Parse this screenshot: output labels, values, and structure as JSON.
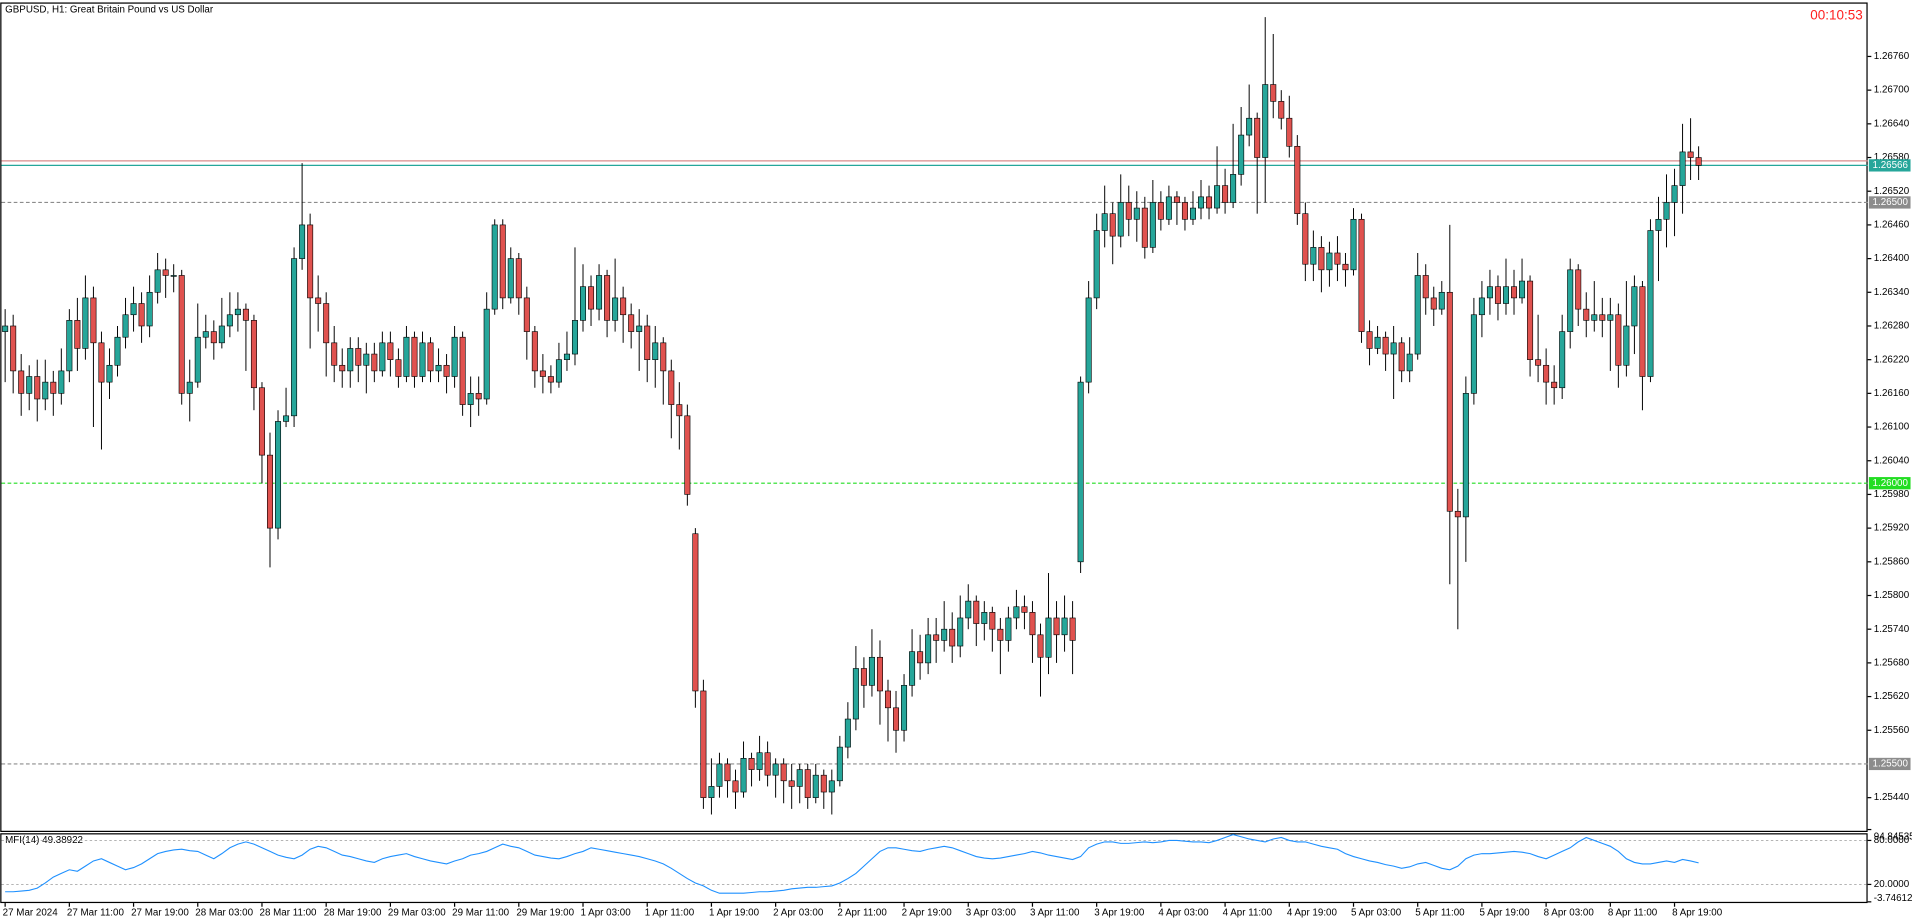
{
  "chart_data": {
    "type": "candlestick",
    "title": "GBPUSD, H1:  Great Britain Pound vs US Dollar",
    "timer": "00:10:53",
    "up_color": "#26a69a",
    "down_color": "#e0524f",
    "categories": [
      "27 Mar 2024",
      null,
      null,
      null,
      null,
      null,
      null,
      null,
      "27 Mar 11:00",
      null,
      null,
      null,
      null,
      null,
      null,
      null,
      "27 Mar 19:00",
      null,
      null,
      null,
      null,
      null,
      null,
      null,
      "28 Mar 03:00",
      null,
      null,
      null,
      null,
      null,
      null,
      null,
      "28 Mar 11:00",
      null,
      null,
      null,
      null,
      null,
      null,
      null,
      "28 Mar 19:00",
      null,
      null,
      null,
      null,
      null,
      null,
      null,
      "29 Mar 03:00",
      null,
      null,
      null,
      null,
      null,
      null,
      null,
      "29 Mar 11:00",
      null,
      null,
      null,
      null,
      null,
      null,
      null,
      "29 Mar 19:00",
      null,
      null,
      null,
      null,
      null,
      null,
      null,
      "1 Apr 03:00",
      null,
      null,
      null,
      null,
      null,
      null,
      null,
      "1 Apr 11:00",
      null,
      null,
      null,
      null,
      null,
      null,
      null,
      "1 Apr 19:00",
      null,
      null,
      null,
      null,
      null,
      null,
      null,
      "2 Apr 03:00",
      null,
      null,
      null,
      null,
      null,
      null,
      null,
      "2 Apr 11:00",
      null,
      null,
      null,
      null,
      null,
      null,
      null,
      "2 Apr 19:00",
      null,
      null,
      null,
      null,
      null,
      null,
      null,
      "3 Apr 03:00",
      null,
      null,
      null,
      null,
      null,
      null,
      null,
      "3 Apr 11:00",
      null,
      null,
      null,
      null,
      null,
      null,
      null,
      "3 Apr 19:00",
      null,
      null,
      null,
      null,
      null,
      null,
      null,
      "4 Apr 03:00",
      null,
      null,
      null,
      null,
      null,
      null,
      null,
      "4 Apr 11:00",
      null,
      null,
      null,
      null,
      null,
      null,
      null,
      "4 Apr 19:00",
      null,
      null,
      null,
      null,
      null,
      null,
      null,
      "5 Apr 03:00",
      null,
      null,
      null,
      null,
      null,
      null,
      null,
      "5 Apr 11:00",
      null,
      null,
      null,
      null,
      null,
      null,
      null,
      "5 Apr 19:00",
      null,
      null,
      null,
      null,
      null,
      null,
      null,
      "8 Apr 03:00",
      null,
      null,
      null,
      null,
      null,
      null,
      null,
      "8 Apr 11:00",
      null,
      null,
      null,
      null,
      null,
      null,
      null,
      "8 Apr 19:00",
      null,
      null,
      null
    ],
    "open": [
      1.2627,
      1.2628,
      1.262,
      1.2616,
      1.2619,
      1.2615,
      1.2618,
      1.2616,
      1.262,
      1.2629,
      1.2624,
      1.2633,
      1.2625,
      1.2618,
      1.2621,
      1.2626,
      1.263,
      1.2632,
      1.2628,
      1.2634,
      1.2638,
      1.2637,
      1.2637,
      1.2616,
      1.2618,
      1.2626,
      1.2627,
      1.2625,
      1.2628,
      1.263,
      1.2631,
      1.2629,
      1.2617,
      1.2605,
      1.2592,
      1.2611,
      1.2612,
      1.264,
      1.2646,
      1.2633,
      1.2632,
      1.2625,
      1.2621,
      1.262,
      1.2624,
      1.2621,
      1.2623,
      1.262,
      1.2625,
      1.2622,
      1.2619,
      1.2626,
      1.2619,
      1.2625,
      1.262,
      1.2621,
      1.2619,
      1.2626,
      1.2614,
      1.2616,
      1.2615,
      1.2631,
      1.2646,
      1.2633,
      1.264,
      1.2633,
      1.2627,
      1.262,
      1.2619,
      1.2618,
      1.2622,
      1.2623,
      1.2629,
      1.2635,
      1.2631,
      1.2637,
      1.2629,
      1.2633,
      1.263,
      1.2627,
      1.2628,
      1.2622,
      1.2625,
      1.262,
      1.2614,
      1.2612,
      1.2591,
      1.2563,
      1.2544,
      1.2546,
      1.255,
      1.2547,
      1.2545,
      1.2551,
      1.2549,
      1.2552,
      1.2548,
      1.255,
      1.2547,
      1.2546,
      1.2549,
      1.2544,
      1.2548,
      1.2545,
      1.2547,
      1.2553,
      1.2558,
      1.2567,
      1.2564,
      1.2569,
      1.2563,
      1.256,
      1.2556,
      1.2564,
      1.257,
      1.2568,
      1.2573,
      1.2572,
      1.2574,
      1.2571,
      1.2576,
      1.2579,
      1.2575,
      1.2577,
      1.2574,
      1.2572,
      1.2576,
      1.2578,
      1.2577,
      1.2573,
      1.2569,
      1.2576,
      1.2573,
      1.2576,
      1.2586,
      1.2618,
      1.2633,
      1.2645,
      1.2648,
      1.2644,
      1.265,
      1.2647,
      1.2649,
      1.2642,
      1.265,
      1.2647,
      1.2651,
      1.265,
      1.2647,
      1.2649,
      1.2651,
      1.2649,
      1.2653,
      1.265,
      1.2655,
      1.2662,
      1.2665,
      1.2658,
      1.2671,
      1.2668,
      1.2665,
      1.266,
      1.2648,
      1.2639,
      1.2642,
      1.2638,
      1.2641,
      1.2639,
      1.2638,
      1.2647,
      1.2627,
      1.2624,
      1.2626,
      1.2623,
      1.2625,
      1.262,
      1.2623,
      1.2637,
      1.2633,
      1.2631,
      1.2634,
      1.2595,
      1.2594,
      1.2616,
      1.263,
      1.2633,
      1.2635,
      1.2632,
      1.2635,
      1.2633,
      1.2636,
      1.2622,
      1.2621,
      1.2618,
      1.2617,
      1.2627,
      1.2638,
      1.2631,
      1.2629,
      1.263,
      1.2629,
      1.263,
      1.2621,
      1.2628,
      1.2635,
      1.2619,
      1.2645,
      1.2647,
      1.265,
      1.2653,
      1.2659,
      1.2658
    ],
    "high": [
      1.2631,
      1.263,
      1.2623,
      1.2621,
      1.2622,
      1.2622,
      1.262,
      1.2624,
      1.2631,
      1.2633,
      1.2637,
      1.2635,
      1.2627,
      1.2624,
      1.2628,
      1.2633,
      1.2635,
      1.2634,
      1.2637,
      1.2641,
      1.264,
      1.2639,
      1.2638,
      1.2622,
      1.2632,
      1.263,
      1.2629,
      1.2633,
      1.2634,
      1.2634,
      1.2632,
      1.263,
      1.2618,
      1.2609,
      1.2613,
      1.2617,
      1.2642,
      1.2657,
      1.2648,
      1.2637,
      1.2634,
      1.2628,
      1.2624,
      1.2626,
      1.2626,
      1.2625,
      1.2625,
      1.2627,
      1.2627,
      1.2624,
      1.2628,
      1.2627,
      1.2627,
      1.2626,
      1.2624,
      1.2623,
      1.2628,
      1.2627,
      1.2619,
      1.2619,
      1.2634,
      1.2647,
      1.2647,
      1.2642,
      1.2641,
      1.2635,
      1.2628,
      1.2623,
      1.2621,
      1.2625,
      1.2627,
      1.2642,
      1.2639,
      1.2637,
      1.2639,
      1.2638,
      1.264,
      1.2635,
      1.2632,
      1.2631,
      1.263,
      1.2628,
      1.2626,
      1.2622,
      1.2618,
      1.2614,
      1.2592,
      1.2565,
      1.2551,
      1.2552,
      1.2551,
      1.2549,
      1.2554,
      1.2552,
      1.2555,
      1.2554,
      1.2551,
      1.2551,
      1.255,
      1.255,
      1.255,
      1.255,
      1.2549,
      1.2549,
      1.2555,
      1.2561,
      1.2571,
      1.2569,
      1.2574,
      1.2572,
      1.2565,
      1.2563,
      1.2566,
      1.2574,
      1.2573,
      1.2576,
      1.2576,
      1.2579,
      1.2577,
      1.258,
      1.2582,
      1.258,
      1.2579,
      1.2578,
      1.2576,
      1.2578,
      1.2581,
      1.258,
      1.2579,
      1.2575,
      1.2584,
      1.2579,
      1.258,
      1.2579,
      1.2619,
      1.2636,
      1.2648,
      1.2653,
      1.265,
      1.2655,
      1.2653,
      1.2652,
      1.2651,
      1.2654,
      1.2652,
      1.2653,
      1.2652,
      1.2651,
      1.2652,
      1.2654,
      1.2653,
      1.266,
      1.2656,
      1.2664,
      1.2667,
      1.2671,
      1.2666,
      1.2683,
      1.268,
      1.267,
      1.2669,
      1.2662,
      1.265,
      1.2645,
      1.2644,
      1.2643,
      1.2644,
      1.2641,
      1.2649,
      1.2648,
      1.2629,
      1.2628,
      1.2627,
      1.2628,
      1.2626,
      1.2626,
      1.2641,
      1.2639,
      1.2635,
      1.2636,
      1.2646,
      1.2599,
      1.2619,
      1.2633,
      1.2636,
      1.2638,
      1.2637,
      1.264,
      1.2638,
      1.264,
      1.2637,
      1.263,
      1.2624,
      1.2621,
      1.263,
      1.264,
      1.2639,
      1.2634,
      1.2636,
      1.2633,
      1.2633,
      1.2632,
      1.2636,
      1.2637,
      1.2636,
      1.2647,
      1.2651,
      1.2655,
      1.2656,
      1.2664,
      1.2665,
      1.266
    ],
    "low": [
      1.2618,
      1.2616,
      1.2612,
      1.2613,
      1.2611,
      1.2613,
      1.2612,
      1.2614,
      1.2618,
      1.262,
      1.2622,
      1.261,
      1.2606,
      1.2615,
      1.2619,
      1.2624,
      1.2627,
      1.2625,
      1.2626,
      1.2632,
      1.2633,
      1.2634,
      1.2614,
      1.2611,
      1.2617,
      1.2624,
      1.2622,
      1.2624,
      1.2626,
      1.2627,
      1.262,
      1.2613,
      1.26,
      1.2585,
      1.259,
      1.261,
      1.261,
      1.2638,
      1.2624,
      1.2627,
      1.2619,
      1.2618,
      1.2617,
      1.2617,
      1.2618,
      1.2616,
      1.2618,
      1.2619,
      1.2619,
      1.2617,
      1.2618,
      1.2617,
      1.2618,
      1.2618,
      1.2618,
      1.2616,
      1.2617,
      1.2612,
      1.261,
      1.2612,
      1.2614,
      1.263,
      1.2631,
      1.2632,
      1.263,
      1.2622,
      1.2617,
      1.2616,
      1.2616,
      1.2617,
      1.262,
      1.2621,
      1.2627,
      1.2628,
      1.2629,
      1.2626,
      1.2627,
      1.2625,
      1.2624,
      1.262,
      1.2618,
      1.2617,
      1.2614,
      1.2608,
      1.2606,
      1.2596,
      1.256,
      1.2542,
      1.2541,
      1.2544,
      1.2544,
      1.2542,
      1.2544,
      1.2546,
      1.2547,
      1.2546,
      1.2544,
      1.2543,
      1.2542,
      1.2543,
      1.2542,
      1.2543,
      1.2542,
      1.2541,
      1.2546,
      1.2551,
      1.2556,
      1.256,
      1.2562,
      1.2557,
      1.2554,
      1.2552,
      1.2554,
      1.2562,
      1.2565,
      1.2566,
      1.2568,
      1.257,
      1.2568,
      1.2569,
      1.2574,
      1.2571,
      1.2572,
      1.257,
      1.2566,
      1.257,
      1.2574,
      1.2574,
      1.2568,
      1.2562,
      1.2566,
      1.2568,
      1.257,
      1.2566,
      1.2584,
      1.2616,
      1.2631,
      1.2642,
      1.2639,
      1.2642,
      1.2644,
      1.2643,
      1.264,
      1.2641,
      1.2645,
      1.2646,
      1.2646,
      1.2645,
      1.2646,
      1.2647,
      1.2647,
      1.2648,
      1.2648,
      1.2649,
      1.2653,
      1.266,
      1.2648,
      1.265,
      1.2665,
      1.2663,
      1.2658,
      1.2646,
      1.2636,
      1.2636,
      1.2634,
      1.2635,
      1.2636,
      1.2635,
      1.2637,
      1.2625,
      1.2621,
      1.2623,
      1.262,
      1.2615,
      1.2618,
      1.2618,
      1.2622,
      1.263,
      1.2628,
      1.263,
      1.2582,
      1.2574,
      1.2586,
      1.2614,
      1.2626,
      1.263,
      1.2629,
      1.263,
      1.263,
      1.2632,
      1.2619,
      1.2618,
      1.2614,
      1.2614,
      1.2615,
      1.2624,
      1.2628,
      1.2626,
      1.2627,
      1.2626,
      1.262,
      1.2617,
      1.2619,
      1.2623,
      1.2613,
      1.2618,
      1.2636,
      1.2642,
      1.2644,
      1.2648,
      1.2654,
      1.2654
    ],
    "close": [
      1.2628,
      1.262,
      1.2616,
      1.2619,
      1.2615,
      1.2618,
      1.2616,
      1.262,
      1.2629,
      1.2624,
      1.2633,
      1.2625,
      1.2618,
      1.2621,
      1.2626,
      1.263,
      1.2632,
      1.2628,
      1.2634,
      1.2638,
      1.2637,
      1.2637,
      1.2616,
      1.2618,
      1.2626,
      1.2627,
      1.2625,
      1.2628,
      1.263,
      1.2631,
      1.2629,
      1.2617,
      1.2605,
      1.2592,
      1.2611,
      1.2612,
      1.264,
      1.2646,
      1.2633,
      1.2632,
      1.2625,
      1.2621,
      1.262,
      1.2624,
      1.2621,
      1.2623,
      1.262,
      1.2625,
      1.2622,
      1.2619,
      1.2626,
      1.2619,
      1.2625,
      1.262,
      1.2621,
      1.2619,
      1.2626,
      1.2614,
      1.2616,
      1.2615,
      1.2631,
      1.2646,
      1.2633,
      1.264,
      1.2633,
      1.2627,
      1.262,
      1.2619,
      1.2618,
      1.2622,
      1.2623,
      1.2629,
      1.2635,
      1.2631,
      1.2637,
      1.2629,
      1.2633,
      1.263,
      1.2627,
      1.2628,
      1.2622,
      1.2625,
      1.262,
      1.2614,
      1.2612,
      1.2598,
      1.2563,
      1.2544,
      1.2546,
      1.255,
      1.2547,
      1.2545,
      1.2551,
      1.2549,
      1.2552,
      1.2548,
      1.255,
      1.2547,
      1.2546,
      1.2549,
      1.2544,
      1.2548,
      1.2545,
      1.2547,
      1.2553,
      1.2558,
      1.2567,
      1.2564,
      1.2569,
      1.2563,
      1.256,
      1.2556,
      1.2564,
      1.257,
      1.2568,
      1.2573,
      1.2572,
      1.2574,
      1.2571,
      1.2576,
      1.2579,
      1.2575,
      1.2577,
      1.2574,
      1.2572,
      1.2576,
      1.2578,
      1.2577,
      1.2573,
      1.2569,
      1.2576,
      1.2573,
      1.2576,
      1.2572,
      1.2618,
      1.2633,
      1.2645,
      1.2648,
      1.2644,
      1.265,
      1.2647,
      1.2649,
      1.2642,
      1.265,
      1.2647,
      1.2651,
      1.265,
      1.2647,
      1.2649,
      1.2651,
      1.2649,
      1.2653,
      1.265,
      1.2655,
      1.2662,
      1.2665,
      1.2658,
      1.2671,
      1.2668,
      1.2665,
      1.266,
      1.2648,
      1.2639,
      1.2642,
      1.2638,
      1.2641,
      1.2639,
      1.2638,
      1.2647,
      1.2627,
      1.2624,
      1.2626,
      1.2623,
      1.2625,
      1.262,
      1.2623,
      1.2637,
      1.2633,
      1.2631,
      1.2634,
      1.2595,
      1.2594,
      1.2616,
      1.263,
      1.2633,
      1.2635,
      1.2632,
      1.2635,
      1.2633,
      1.2636,
      1.2622,
      1.2621,
      1.2618,
      1.2617,
      1.2627,
      1.2638,
      1.2631,
      1.2629,
      1.263,
      1.2629,
      1.263,
      1.2621,
      1.2628,
      1.2635,
      1.2619,
      1.2645,
      1.2647,
      1.265,
      1.2653,
      1.2659,
      1.2658,
      1.26566
    ],
    "ylim": [
      1.25381,
      1.26854
    ],
    "yticks": [
      {
        "value": 1.2676,
        "label": "1.26760"
      },
      {
        "value": 1.267,
        "label": "1.26700"
      },
      {
        "value": 1.2664,
        "label": "1.26640"
      },
      {
        "value": 1.2658,
        "label": "1.26580"
      },
      {
        "value": 1.2652,
        "label": "1.26520"
      },
      {
        "value": 1.2646,
        "label": "1.26460"
      },
      {
        "value": 1.264,
        "label": "1.26400"
      },
      {
        "value": 1.2634,
        "label": "1.26340"
      },
      {
        "value": 1.2628,
        "label": "1.26280"
      },
      {
        "value": 1.2622,
        "label": "1.26220"
      },
      {
        "value": 1.2616,
        "label": "1.26160"
      },
      {
        "value": 1.261,
        "label": "1.26100"
      },
      {
        "value": 1.2604,
        "label": "1.26040"
      },
      {
        "value": 1.2598,
        "label": "1.25980"
      },
      {
        "value": 1.2592,
        "label": "1.25920"
      },
      {
        "value": 1.2586,
        "label": "1.25860"
      },
      {
        "value": 1.258,
        "label": "1.25800"
      },
      {
        "value": 1.2574,
        "label": "1.25740"
      },
      {
        "value": 1.2568,
        "label": "1.25680"
      },
      {
        "value": 1.2562,
        "label": "1.25620"
      },
      {
        "value": 1.2556,
        "label": "1.25560"
      },
      {
        "value": 1.2544,
        "label": "1.25440"
      }
    ],
    "levels": [
      {
        "value": 1.265,
        "label": "1.26500",
        "color": "#8c8c8c"
      },
      {
        "value": 1.26,
        "label": "1.26000",
        "color": "#22dd22"
      },
      {
        "value": 1.255,
        "label": "1.25500",
        "color": "#8c8c8c"
      }
    ],
    "ask": {
      "value": 1.26574,
      "color": "#d98c8c"
    },
    "bid": {
      "value": 1.26566,
      "label": "1.26566",
      "color": "#26a69a"
    },
    "indicator": {
      "type": "line",
      "label": "MFI(14) 49.38922",
      "color": "#1e90ff",
      "ylim": [
        -3.74612,
        94.84535
      ],
      "yticks": [
        94.84535,
        {
          "value": 80,
          "label": "80.0000"
        },
        {
          "value": 20,
          "label": "20.0000"
        },
        -3.74612
      ],
      "values": [
        10,
        10,
        11,
        12,
        15,
        22,
        30,
        35,
        40,
        38,
        45,
        52,
        55,
        50,
        45,
        40,
        43,
        48,
        55,
        62,
        65,
        67,
        68,
        66,
        65,
        60,
        55,
        62,
        70,
        75,
        78,
        75,
        70,
        65,
        60,
        57,
        55,
        60,
        68,
        72,
        70,
        65,
        60,
        58,
        55,
        52,
        50,
        55,
        58,
        60,
        62,
        58,
        55,
        52,
        50,
        48,
        52,
        55,
        60,
        62,
        65,
        70,
        75,
        72,
        70,
        65,
        60,
        58,
        56,
        55,
        58,
        62,
        65,
        70,
        68,
        66,
        64,
        62,
        60,
        58,
        55,
        52,
        48,
        42,
        35,
        28,
        22,
        18,
        12,
        8,
        8,
        8,
        8,
        9,
        10,
        10,
        11,
        12,
        14,
        15,
        16,
        16,
        17,
        18,
        22,
        28,
        35,
        45,
        55,
        65,
        70,
        70,
        68,
        66,
        65,
        68,
        70,
        72,
        70,
        66,
        62,
        58,
        56,
        55,
        56,
        58,
        60,
        62,
        65,
        63,
        60,
        58,
        56,
        54,
        58,
        70,
        75,
        78,
        78,
        76,
        76,
        77,
        78,
        77,
        78,
        80,
        80,
        79,
        78,
        78,
        77,
        80,
        84,
        88,
        85,
        82,
        80,
        78,
        82,
        84,
        80,
        78,
        78,
        75,
        72,
        70,
        68,
        62,
        58,
        55,
        52,
        50,
        47,
        45,
        42,
        44,
        48,
        50,
        46,
        42,
        40,
        45,
        55,
        60,
        62,
        62,
        63,
        64,
        65,
        64,
        62,
        58,
        55,
        60,
        65,
        70,
        78,
        84,
        80,
        76,
        72,
        65,
        55,
        50,
        48,
        48,
        50,
        52,
        50,
        54,
        52,
        49.38922
      ]
    }
  }
}
